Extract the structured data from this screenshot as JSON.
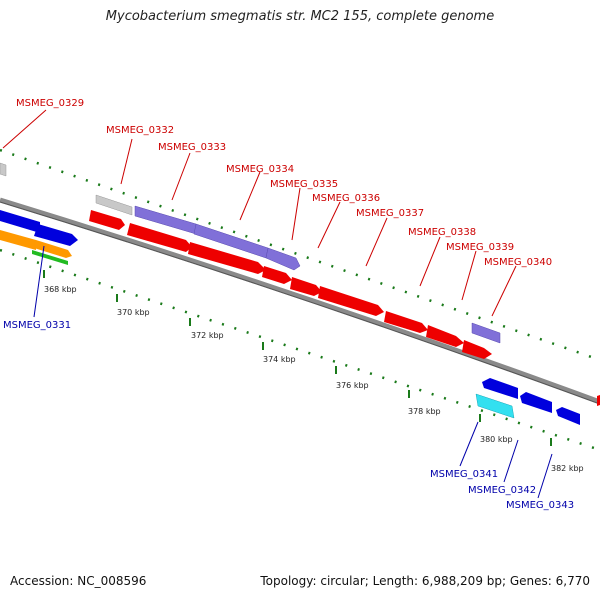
{
  "title": "Mycobacterium smegmatis str. MC2 155, complete genome",
  "footer": {
    "accession": "Accession: NC_008596",
    "summary": "Topology: circular; Length: 6,988,209 bp; Genes: 6,770"
  },
  "colors": {
    "backbone": "#8a8a8a",
    "tick": "#1a7a1a",
    "plus_label": "#cc0000",
    "minus_label": "#0000aa",
    "gray": "#c8c8c8",
    "purple": "#8070d8",
    "red": "#ee0000",
    "blue": "#0000dd",
    "cyan": "#33e0f0",
    "orange": "#ff9900",
    "green": "#22bb22"
  },
  "scale_labels": [
    "368 kbp",
    "370 kbp",
    "372 kbp",
    "374 kbp",
    "376 kbp",
    "378 kbp",
    "380 kbp",
    "382 kbp"
  ],
  "gene_labels_plus": [
    "MSMEG_0329",
    "MSMEG_0332",
    "MSMEG_0333",
    "MSMEG_0334",
    "MSMEG_0335",
    "MSMEG_0336",
    "MSMEG_0337",
    "MSMEG_0338",
    "MSMEG_0339",
    "MSMEG_0340"
  ],
  "gene_labels_minus": [
    "MSMEG_0331",
    "MSMEG_0341",
    "MSMEG_0342",
    "MSMEG_0343"
  ]
}
